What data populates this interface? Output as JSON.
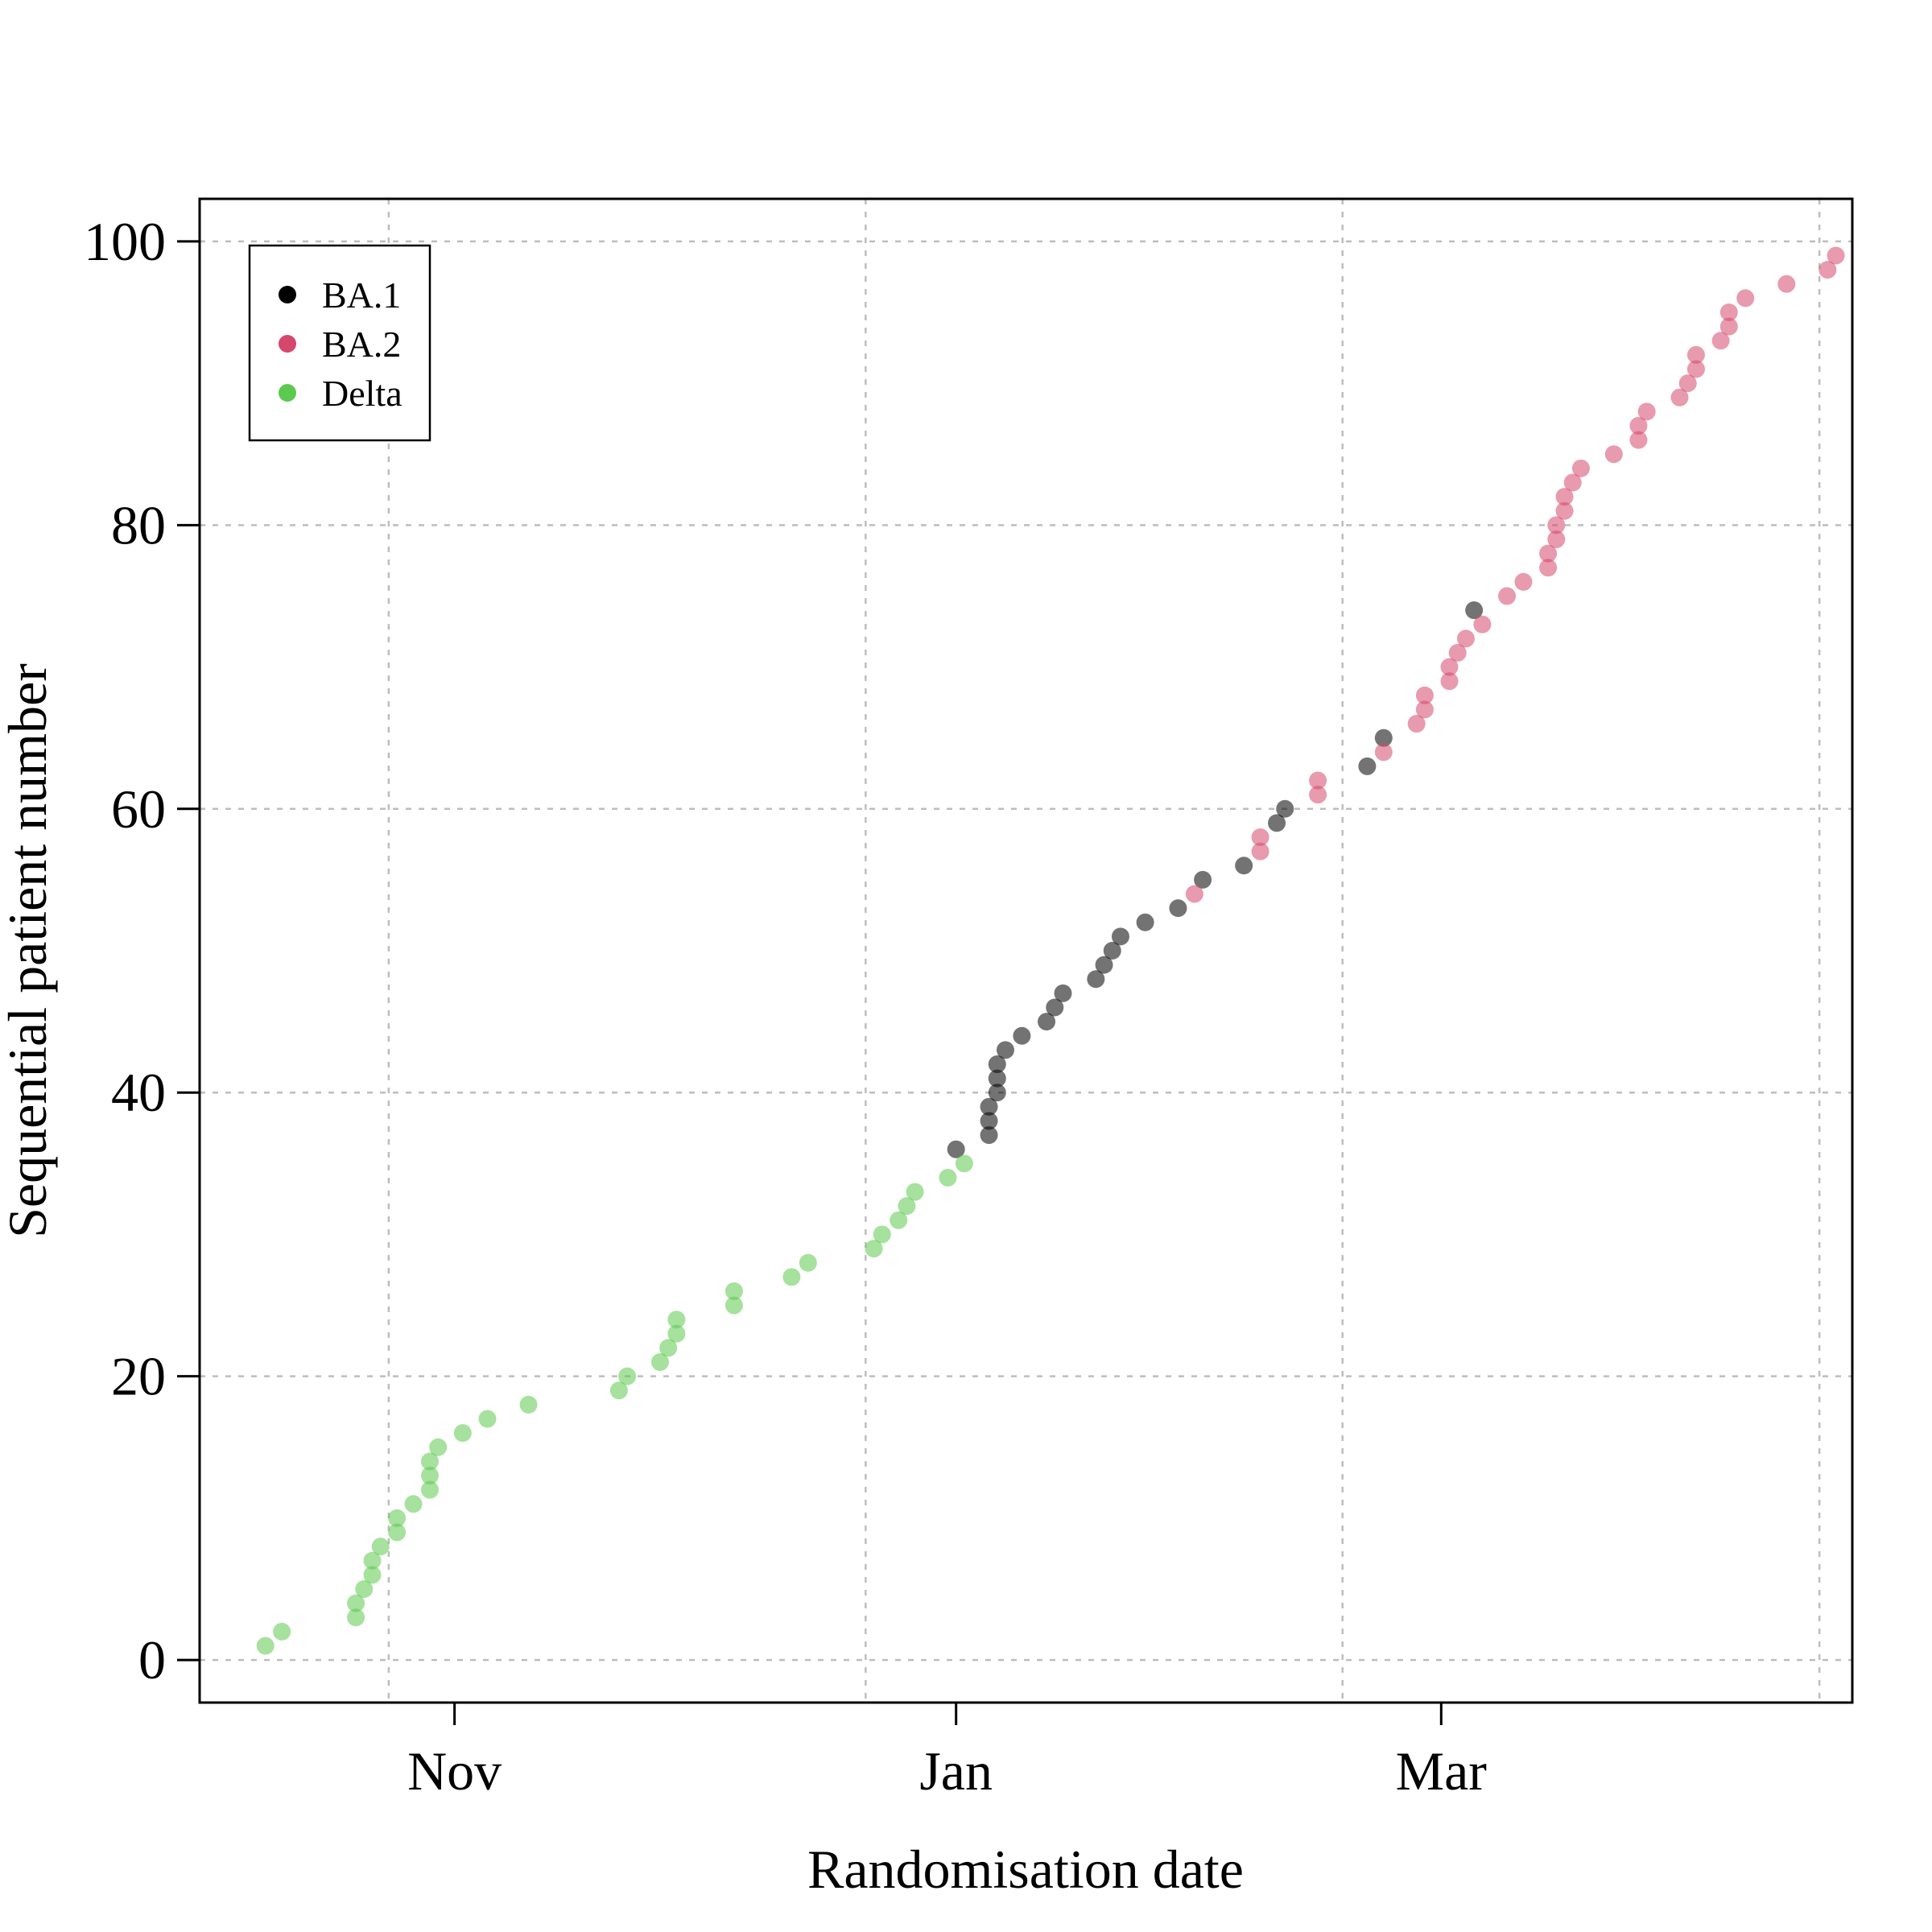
{
  "chart_data": {
    "type": "scatter",
    "xlabel": "Randomisation date",
    "ylabel": "Sequential patient number",
    "y_ticks": [
      "0",
      "20",
      "40",
      "60",
      "80",
      "100"
    ],
    "x_ticks": [
      {
        "date": "2021-11-01",
        "label": "Nov"
      },
      {
        "date": "2022-01-01",
        "label": "Jan"
      },
      {
        "date": "2022-03-01",
        "label": "Mar"
      }
    ],
    "x_grid_dates": [
      "2021-10-24",
      "2021-12-21",
      "2022-02-17",
      "2022-04-16"
    ],
    "xlim": [
      "2021-10-01",
      "2022-04-20"
    ],
    "ylim": [
      -3,
      103
    ],
    "grid": true,
    "legend_position": "top-left",
    "series": [
      {
        "name": "BA.1",
        "color": "#000000",
        "points": [
          {
            "x": "2022-01-01",
            "y": 36
          },
          {
            "x": "2022-01-05",
            "y": 37
          },
          {
            "x": "2022-01-05",
            "y": 38
          },
          {
            "x": "2022-01-05",
            "y": 39
          },
          {
            "x": "2022-01-06",
            "y": 40
          },
          {
            "x": "2022-01-06",
            "y": 41
          },
          {
            "x": "2022-01-06",
            "y": 42
          },
          {
            "x": "2022-01-07",
            "y": 43
          },
          {
            "x": "2022-01-09",
            "y": 44
          },
          {
            "x": "2022-01-12",
            "y": 45
          },
          {
            "x": "2022-01-13",
            "y": 46
          },
          {
            "x": "2022-01-14",
            "y": 47
          },
          {
            "x": "2022-01-18",
            "y": 48
          },
          {
            "x": "2022-01-19",
            "y": 49
          },
          {
            "x": "2022-01-20",
            "y": 50
          },
          {
            "x": "2022-01-21",
            "y": 51
          },
          {
            "x": "2022-01-24",
            "y": 52
          },
          {
            "x": "2022-01-28",
            "y": 53
          },
          {
            "x": "2022-01-31",
            "y": 55
          },
          {
            "x": "2022-02-05",
            "y": 56
          },
          {
            "x": "2022-02-09",
            "y": 59
          },
          {
            "x": "2022-02-10",
            "y": 60
          },
          {
            "x": "2022-02-20",
            "y": 63
          },
          {
            "x": "2022-02-22",
            "y": 65
          },
          {
            "x": "2022-03-05",
            "y": 74
          }
        ]
      },
      {
        "name": "BA.2",
        "color": "#d6476c",
        "points": [
          {
            "x": "2022-01-30",
            "y": 54
          },
          {
            "x": "2022-02-07",
            "y": 57
          },
          {
            "x": "2022-02-07",
            "y": 58
          },
          {
            "x": "2022-02-14",
            "y": 61
          },
          {
            "x": "2022-02-14",
            "y": 62
          },
          {
            "x": "2022-02-22",
            "y": 64
          },
          {
            "x": "2022-02-26",
            "y": 66
          },
          {
            "x": "2022-02-27",
            "y": 67
          },
          {
            "x": "2022-02-27",
            "y": 68
          },
          {
            "x": "2022-03-02",
            "y": 69
          },
          {
            "x": "2022-03-02",
            "y": 70
          },
          {
            "x": "2022-03-03",
            "y": 71
          },
          {
            "x": "2022-03-04",
            "y": 72
          },
          {
            "x": "2022-03-06",
            "y": 73
          },
          {
            "x": "2022-03-09",
            "y": 75
          },
          {
            "x": "2022-03-11",
            "y": 76
          },
          {
            "x": "2022-03-14",
            "y": 77
          },
          {
            "x": "2022-03-14",
            "y": 78
          },
          {
            "x": "2022-03-15",
            "y": 79
          },
          {
            "x": "2022-03-15",
            "y": 80
          },
          {
            "x": "2022-03-16",
            "y": 81
          },
          {
            "x": "2022-03-16",
            "y": 82
          },
          {
            "x": "2022-03-17",
            "y": 83
          },
          {
            "x": "2022-03-18",
            "y": 84
          },
          {
            "x": "2022-03-22",
            "y": 85
          },
          {
            "x": "2022-03-25",
            "y": 86
          },
          {
            "x": "2022-03-25",
            "y": 87
          },
          {
            "x": "2022-03-26",
            "y": 88
          },
          {
            "x": "2022-03-30",
            "y": 89
          },
          {
            "x": "2022-03-31",
            "y": 90
          },
          {
            "x": "2022-04-01",
            "y": 91
          },
          {
            "x": "2022-04-01",
            "y": 92
          },
          {
            "x": "2022-04-04",
            "y": 93
          },
          {
            "x": "2022-04-05",
            "y": 94
          },
          {
            "x": "2022-04-05",
            "y": 95
          },
          {
            "x": "2022-04-07",
            "y": 96
          },
          {
            "x": "2022-04-12",
            "y": 97
          },
          {
            "x": "2022-04-17",
            "y": 98
          },
          {
            "x": "2022-04-18",
            "y": 99
          }
        ]
      },
      {
        "name": "Delta",
        "color": "#5cc94f",
        "points": [
          {
            "x": "2021-10-09",
            "y": 1
          },
          {
            "x": "2021-10-11",
            "y": 2
          },
          {
            "x": "2021-10-20",
            "y": 3
          },
          {
            "x": "2021-10-20",
            "y": 4
          },
          {
            "x": "2021-10-21",
            "y": 5
          },
          {
            "x": "2021-10-22",
            "y": 6
          },
          {
            "x": "2021-10-22",
            "y": 7
          },
          {
            "x": "2021-10-23",
            "y": 8
          },
          {
            "x": "2021-10-25",
            "y": 9
          },
          {
            "x": "2021-10-25",
            "y": 10
          },
          {
            "x": "2021-10-27",
            "y": 11
          },
          {
            "x": "2021-10-29",
            "y": 12
          },
          {
            "x": "2021-10-29",
            "y": 13
          },
          {
            "x": "2021-10-29",
            "y": 14
          },
          {
            "x": "2021-10-30",
            "y": 15
          },
          {
            "x": "2021-11-02",
            "y": 16
          },
          {
            "x": "2021-11-05",
            "y": 17
          },
          {
            "x": "2021-11-10",
            "y": 18
          },
          {
            "x": "2021-11-21",
            "y": 19
          },
          {
            "x": "2021-11-22",
            "y": 20
          },
          {
            "x": "2021-11-26",
            "y": 21
          },
          {
            "x": "2021-11-27",
            "y": 22
          },
          {
            "x": "2021-11-28",
            "y": 23
          },
          {
            "x": "2021-11-28",
            "y": 24
          },
          {
            "x": "2021-12-05",
            "y": 25
          },
          {
            "x": "2021-12-05",
            "y": 26
          },
          {
            "x": "2021-12-12",
            "y": 27
          },
          {
            "x": "2021-12-14",
            "y": 28
          },
          {
            "x": "2021-12-22",
            "y": 29
          },
          {
            "x": "2021-12-23",
            "y": 30
          },
          {
            "x": "2021-12-25",
            "y": 31
          },
          {
            "x": "2021-12-26",
            "y": 32
          },
          {
            "x": "2021-12-27",
            "y": 33
          },
          {
            "x": "2021-12-31",
            "y": 34
          },
          {
            "x": "2022-01-02",
            "y": 35
          }
        ]
      }
    ]
  }
}
